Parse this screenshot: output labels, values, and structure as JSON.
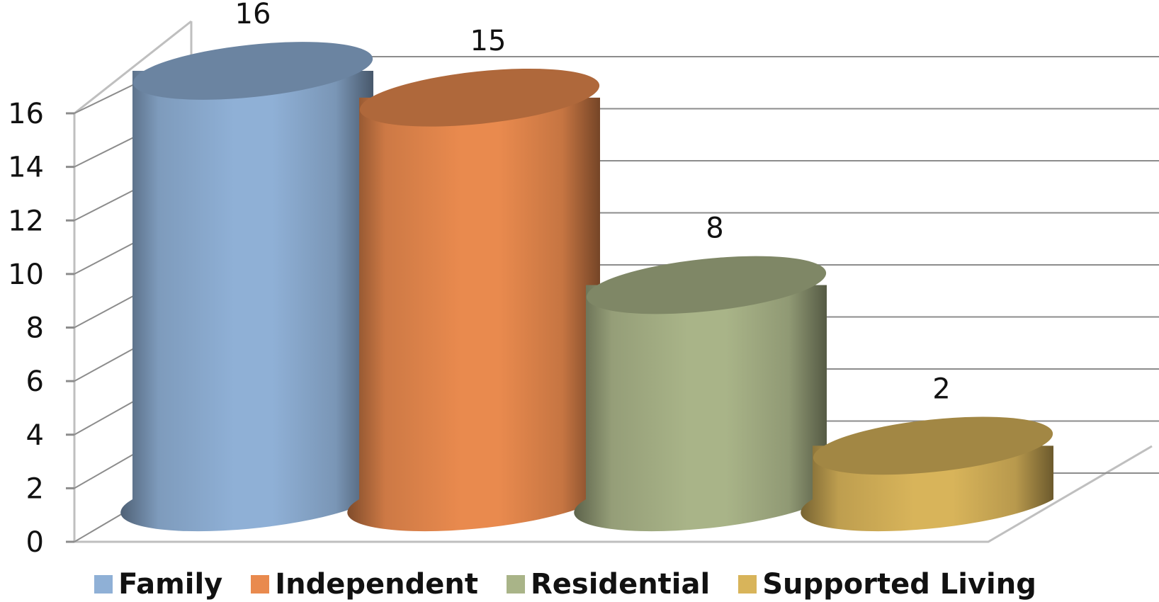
{
  "chart_data": {
    "type": "bar",
    "style": "3d-cylinder",
    "categories": [
      ""
    ],
    "series": [
      {
        "name": "Family",
        "values": [
          16
        ],
        "color": "#8fb0d6"
      },
      {
        "name": "Independent",
        "values": [
          15
        ],
        "color": "#e98a4e"
      },
      {
        "name": "Residential",
        "values": [
          8
        ],
        "color": "#a9b488"
      },
      {
        "name": "Supported Living",
        "values": [
          2
        ],
        "color": "#d8b45a"
      }
    ],
    "data_labels": [
      "16",
      "15",
      "8",
      "2"
    ],
    "y_ticks": [
      "0",
      "2",
      "4",
      "6",
      "8",
      "10",
      "12",
      "14",
      "16"
    ],
    "ylim": [
      0,
      16
    ],
    "grid": true,
    "legend_position": "bottom"
  }
}
